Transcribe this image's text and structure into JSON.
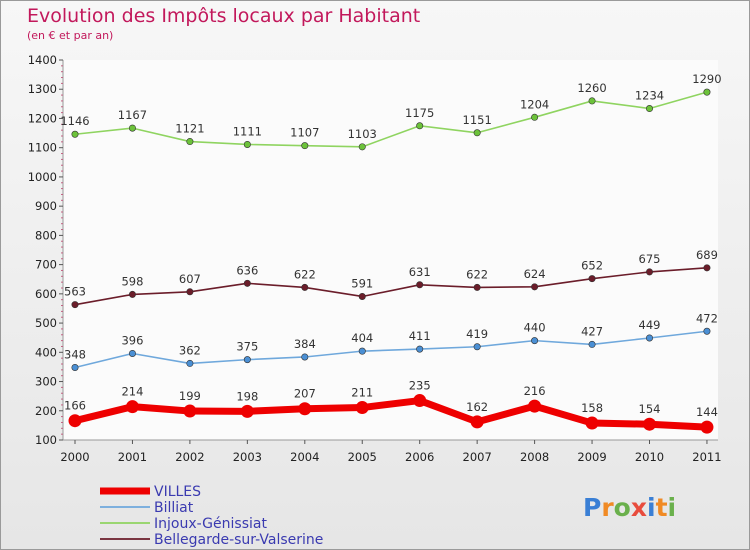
{
  "title": "Evolution des Impôts locaux par Habitant",
  "subtitle": "(en € et par an)",
  "logo": {
    "letters": [
      "P",
      "r",
      "o",
      "x",
      "i",
      "t",
      "i"
    ],
    "colors": [
      "#3a7fd5",
      "#f08a24",
      "#6ab04c",
      "#e84c3d",
      "#3a7fd5",
      "#f08a24",
      "#6ab04c"
    ]
  },
  "chart_data": {
    "type": "line",
    "x": [
      "2000",
      "2001",
      "2002",
      "2003",
      "2004",
      "2005",
      "2006",
      "2007",
      "2008",
      "2009",
      "2010",
      "2011"
    ],
    "ylim": [
      100,
      1400
    ],
    "yticks": [
      100,
      200,
      300,
      400,
      500,
      600,
      700,
      800,
      900,
      1000,
      1100,
      1200,
      1300,
      1400
    ],
    "grid": false,
    "legend": "bottom-left",
    "series": [
      {
        "name": "Injoux-Génissiat",
        "color": "#8fd460",
        "marker": "#6cc23a",
        "values": [
          1146,
          1167,
          1121,
          1111,
          1107,
          1103,
          1175,
          1151,
          1204,
          1260,
          1234,
          1290
        ]
      },
      {
        "name": "Bellegarde-sur-Valserine",
        "color": "#6b1d2a",
        "marker": "#6b1d2a",
        "values": [
          563,
          598,
          607,
          636,
          622,
          591,
          631,
          622,
          624,
          652,
          675,
          689
        ]
      },
      {
        "name": "Billiat",
        "color": "#6fa8dc",
        "marker": "#4a8fd4",
        "values": [
          348,
          396,
          362,
          375,
          384,
          404,
          411,
          419,
          440,
          427,
          449,
          472
        ]
      },
      {
        "name": "VILLES",
        "color": "#ee0000",
        "marker": "#ee0000",
        "values": [
          166,
          214,
          199,
          198,
          207,
          211,
          235,
          162,
          216,
          158,
          154,
          144
        ]
      }
    ],
    "legend_order": [
      "VILLES",
      "Billiat",
      "Injoux-Génissiat",
      "Bellegarde-sur-Valserine"
    ]
  }
}
